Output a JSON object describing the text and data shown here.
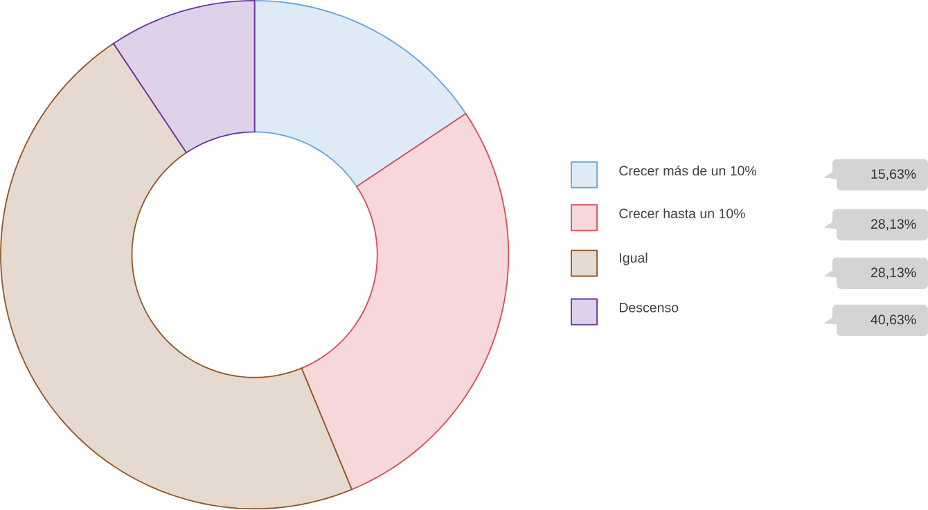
{
  "chart_data": {
    "type": "donut",
    "categories": [
      "Crecer más de un 10%",
      "Crecer hasta un 10%",
      "Igual",
      "Descenso"
    ],
    "values": [
      15.63,
      28.13,
      46.88,
      9.38
    ],
    "annotations": [
      "15,63%",
      "28,13%",
      "28,13%",
      "40,63%"
    ],
    "colors": [
      "#deebf7",
      "#f6d8da",
      "#e6dad0",
      "#ded2ea"
    ],
    "legend": "right"
  }
}
